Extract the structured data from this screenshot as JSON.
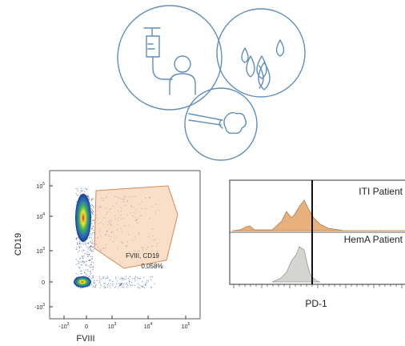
{
  "figure": {
    "plot_left": {
      "y_label": "CD19",
      "x_label": "FVIII",
      "y_ticks": [
        {
          "base": "10",
          "exp": "5"
        },
        {
          "base": "10",
          "exp": "4"
        },
        {
          "base": "10",
          "exp": "3"
        },
        {
          "base": "0"
        },
        {
          "base": "-10",
          "exp": "3"
        }
      ],
      "x_ticks": [
        {
          "base": "-10",
          "exp": "3"
        },
        {
          "base": "0"
        },
        {
          "base": "10",
          "exp": "3"
        },
        {
          "base": "10",
          "exp": "4"
        },
        {
          "base": "10",
          "exp": "5"
        }
      ],
      "gate_label": "FVIII, CD19",
      "gate_percent": "0,058%"
    },
    "plot_right": {
      "x_label": "PD-1",
      "series": [
        "ITI Patient",
        "HemA Patient"
      ]
    }
  }
}
